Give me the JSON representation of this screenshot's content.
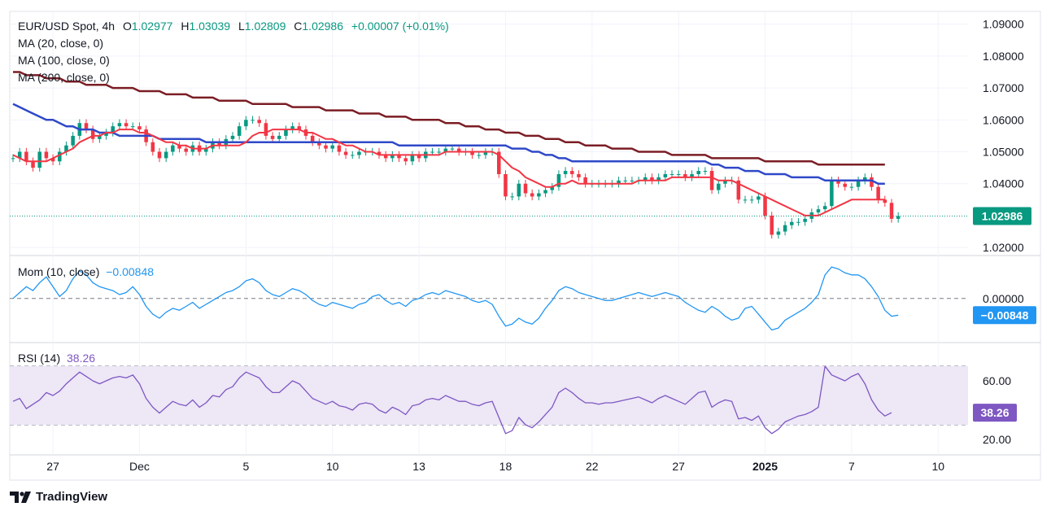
{
  "header": {
    "symbol": "EUR/USD Spot, 4h",
    "open_label": "O",
    "open": "1.02977",
    "high_label": "H",
    "high": "1.03039",
    "low_label": "L",
    "low": "1.02809",
    "close_label": "C",
    "close": "1.02986",
    "change": "+0.00007 (+0.01%)"
  },
  "indicators": {
    "ma20": "MA (20, close, 0)",
    "ma100": "MA (100, close, 0)",
    "ma200": "MA (200, close, 0)",
    "mom_label": "Mom (10, close)",
    "mom_value": "−0.00848",
    "rsi_label": "RSI (14)",
    "rsi_value": "38.26"
  },
  "brand": "TradingView",
  "colors": {
    "up": "#089981",
    "down": "#f23645",
    "ma20": "#f23645",
    "ma100": "#2f49c8",
    "ma200": "#7b1d24",
    "mom": "#2196f3",
    "rsi": "#7e57c2",
    "rsi_band": "#ede7f6"
  },
  "chart_data": [
    {
      "type": "line",
      "title": "EUR/USD Spot, 4h",
      "ylim": [
        1.018,
        1.094
      ],
      "y_ticks": [
        "1.09000",
        "1.08000",
        "1.07000",
        "1.06000",
        "1.05000",
        "1.04000",
        "1.02000"
      ],
      "y_tick_values": [
        1.09,
        1.08,
        1.07,
        1.06,
        1.05,
        1.04,
        1.02
      ],
      "last_price_label": "1.02986",
      "last_price": 1.02986,
      "x_ticks": [
        "27",
        "Dec",
        "5",
        "10",
        "13",
        "18",
        "22",
        "27",
        "2025",
        "7",
        "10"
      ],
      "x_tick_index": [
        6,
        19,
        35,
        48,
        61,
        74,
        87,
        100,
        113,
        126,
        139
      ],
      "series": [
        {
          "name": "Price",
          "values": [
            1.048,
            1.05,
            1.047,
            1.045,
            1.05,
            1.048,
            1.047,
            1.05,
            1.052,
            1.055,
            1.059,
            1.057,
            1.054,
            1.055,
            1.056,
            1.058,
            1.059,
            1.058,
            1.058,
            1.057,
            1.053,
            1.05,
            1.048,
            1.05,
            1.052,
            1.051,
            1.05,
            1.052,
            1.05,
            1.051,
            1.053,
            1.052,
            1.054,
            1.055,
            1.058,
            1.06,
            1.06,
            1.059,
            1.055,
            1.054,
            1.055,
            1.057,
            1.058,
            1.057,
            1.055,
            1.053,
            1.052,
            1.051,
            1.052,
            1.05,
            1.049,
            1.049,
            1.05,
            1.05,
            1.05,
            1.049,
            1.048,
            1.049,
            1.048,
            1.047,
            1.049,
            1.048,
            1.05,
            1.05,
            1.05,
            1.051,
            1.051,
            1.05,
            1.05,
            1.049,
            1.049,
            1.05,
            1.05,
            1.043,
            1.036,
            1.036,
            1.04,
            1.037,
            1.036,
            1.037,
            1.038,
            1.039,
            1.043,
            1.044,
            1.043,
            1.042,
            1.04,
            1.04,
            1.04,
            1.04,
            1.04,
            1.041,
            1.041,
            1.041,
            1.041,
            1.042,
            1.041,
            1.042,
            1.043,
            1.043,
            1.043,
            1.042,
            1.043,
            1.044,
            1.044,
            1.038,
            1.04,
            1.041,
            1.041,
            1.035,
            1.035,
            1.035,
            1.036,
            1.03,
            1.024,
            1.025,
            1.027,
            1.028,
            1.028,
            1.029,
            1.031,
            1.032,
            1.033,
            1.041,
            1.04,
            1.039,
            1.039,
            1.041,
            1.042,
            1.039,
            1.035,
            1.034,
            1.029,
            1.02986
          ]
        },
        {
          "name": "MA (20, close, 0)",
          "values": [
            1.049,
            1.048,
            1.047,
            1.047,
            1.047,
            1.047,
            1.048,
            1.049,
            1.05,
            1.051,
            1.053,
            1.054,
            1.055,
            1.055,
            1.056,
            1.056,
            1.057,
            1.057,
            1.057,
            1.056,
            1.056,
            1.055,
            1.054,
            1.053,
            1.053,
            1.052,
            1.052,
            1.051,
            1.051,
            1.051,
            1.052,
            1.052,
            1.052,
            1.052,
            1.052,
            1.053,
            1.055,
            1.056,
            1.056,
            1.057,
            1.057,
            1.057,
            1.057,
            1.057,
            1.056,
            1.056,
            1.055,
            1.054,
            1.054,
            1.053,
            1.052,
            1.052,
            1.051,
            1.05,
            1.05,
            1.049,
            1.049,
            1.049,
            1.049,
            1.049,
            1.049,
            1.049,
            1.049,
            1.049,
            1.049,
            1.05,
            1.05,
            1.05,
            1.05,
            1.05,
            1.05,
            1.05,
            1.05,
            1.049,
            1.047,
            1.045,
            1.044,
            1.042,
            1.041,
            1.04,
            1.039,
            1.039,
            1.04,
            1.04,
            1.041,
            1.04,
            1.04,
            1.04,
            1.04,
            1.04,
            1.04,
            1.04,
            1.04,
            1.04,
            1.041,
            1.041,
            1.041,
            1.041,
            1.041,
            1.042,
            1.042,
            1.042,
            1.042,
            1.042,
            1.042,
            1.042,
            1.041,
            1.041,
            1.041,
            1.04,
            1.039,
            1.038,
            1.037,
            1.036,
            1.035,
            1.034,
            1.033,
            1.032,
            1.031,
            1.03,
            1.03,
            1.03,
            1.031,
            1.032,
            1.033,
            1.034,
            1.035,
            1.035,
            1.035,
            1.035,
            1.035,
            1.035
          ]
        },
        {
          "name": "MA (100, close, 0)",
          "values": [
            1.065,
            1.064,
            1.063,
            1.062,
            1.061,
            1.06,
            1.06,
            1.059,
            1.058,
            1.058,
            1.057,
            1.057,
            1.057,
            1.056,
            1.056,
            1.056,
            1.055,
            1.055,
            1.055,
            1.055,
            1.055,
            1.055,
            1.054,
            1.054,
            1.054,
            1.054,
            1.054,
            1.054,
            1.054,
            1.053,
            1.053,
            1.053,
            1.053,
            1.053,
            1.053,
            1.053,
            1.053,
            1.053,
            1.053,
            1.053,
            1.053,
            1.053,
            1.053,
            1.053,
            1.053,
            1.053,
            1.053,
            1.053,
            1.053,
            1.053,
            1.053,
            1.053,
            1.053,
            1.053,
            1.053,
            1.053,
            1.053,
            1.053,
            1.052,
            1.052,
            1.052,
            1.052,
            1.052,
            1.052,
            1.052,
            1.052,
            1.052,
            1.052,
            1.052,
            1.052,
            1.052,
            1.052,
            1.052,
            1.052,
            1.052,
            1.051,
            1.051,
            1.051,
            1.05,
            1.05,
            1.049,
            1.049,
            1.048,
            1.048,
            1.047,
            1.047,
            1.047,
            1.047,
            1.047,
            1.047,
            1.047,
            1.047,
            1.047,
            1.047,
            1.047,
            1.047,
            1.047,
            1.047,
            1.047,
            1.047,
            1.047,
            1.047,
            1.047,
            1.047,
            1.047,
            1.046,
            1.046,
            1.045,
            1.045,
            1.045,
            1.044,
            1.044,
            1.044,
            1.043,
            1.043,
            1.043,
            1.043,
            1.042,
            1.042,
            1.042,
            1.042,
            1.042,
            1.041,
            1.041,
            1.041,
            1.041,
            1.041,
            1.041,
            1.041,
            1.041,
            1.04,
            1.04
          ]
        },
        {
          "name": "MA (200, close, 0)",
          "values": [
            1.075,
            1.075,
            1.074,
            1.074,
            1.074,
            1.073,
            1.073,
            1.073,
            1.072,
            1.072,
            1.072,
            1.071,
            1.071,
            1.071,
            1.071,
            1.07,
            1.07,
            1.07,
            1.07,
            1.069,
            1.069,
            1.069,
            1.069,
            1.068,
            1.068,
            1.068,
            1.068,
            1.067,
            1.067,
            1.067,
            1.067,
            1.066,
            1.066,
            1.066,
            1.066,
            1.066,
            1.065,
            1.065,
            1.065,
            1.065,
            1.065,
            1.065,
            1.064,
            1.064,
            1.064,
            1.064,
            1.064,
            1.063,
            1.063,
            1.063,
            1.063,
            1.063,
            1.062,
            1.062,
            1.062,
            1.062,
            1.061,
            1.061,
            1.061,
            1.061,
            1.06,
            1.06,
            1.06,
            1.06,
            1.06,
            1.059,
            1.059,
            1.059,
            1.058,
            1.058,
            1.058,
            1.057,
            1.057,
            1.057,
            1.056,
            1.056,
            1.056,
            1.055,
            1.055,
            1.055,
            1.054,
            1.054,
            1.054,
            1.053,
            1.053,
            1.053,
            1.052,
            1.052,
            1.052,
            1.052,
            1.051,
            1.051,
            1.051,
            1.051,
            1.05,
            1.05,
            1.05,
            1.05,
            1.05,
            1.049,
            1.049,
            1.049,
            1.049,
            1.049,
            1.049,
            1.048,
            1.048,
            1.048,
            1.048,
            1.048,
            1.048,
            1.048,
            1.048,
            1.047,
            1.047,
            1.047,
            1.047,
            1.047,
            1.047,
            1.047,
            1.047,
            1.046,
            1.046,
            1.046,
            1.046,
            1.046,
            1.046,
            1.046,
            1.046,
            1.046,
            1.046,
            1.046
          ]
        }
      ]
    },
    {
      "type": "line",
      "title": "Mom (10, close)",
      "ylim": [
        -0.022,
        0.021
      ],
      "y_ticks": [
        "0.00000"
      ],
      "y_tick_values": [
        0
      ],
      "last_value_label": "−0.00848",
      "x_ticks": [
        "27",
        "Dec",
        "5",
        "10",
        "13",
        "18",
        "22",
        "27",
        "2025",
        "7",
        "10"
      ],
      "series": [
        {
          "name": "Mom (10, close)",
          "values": [
            0,
            0.003,
            0.006,
            0.004,
            0.008,
            0.011,
            0.006,
            0.001,
            0.004,
            0.01,
            0.014,
            0.012,
            0.008,
            0.006,
            0.005,
            0.004,
            0.002,
            0.003,
            0.006,
            0.002,
            -0.004,
            -0.008,
            -0.01,
            -0.007,
            -0.005,
            -0.006,
            -0.004,
            -0.002,
            -0.005,
            -0.003,
            -0.001,
            0.001,
            0.003,
            0.004,
            0.006,
            0.009,
            0.01,
            0.008,
            0.004,
            0.002,
            0.001,
            0.003,
            0.005,
            0.004,
            0.002,
            -0.001,
            -0.003,
            -0.004,
            -0.002,
            -0.003,
            -0.004,
            -0.005,
            -0.003,
            -0.002,
            0.001,
            0.002,
            -0.001,
            -0.003,
            -0.002,
            -0.004,
            -0.001,
            0,
            0.002,
            0.003,
            0.002,
            0.004,
            0.003,
            0.002,
            0.001,
            -0.001,
            -0.002,
            -0.001,
            -0.003,
            -0.009,
            -0.014,
            -0.013,
            -0.01,
            -0.012,
            -0.013,
            -0.01,
            -0.005,
            -0.001,
            0.004,
            0.006,
            0.005,
            0.003,
            0.002,
            0.001,
            0,
            -0.001,
            -0.001,
            0,
            0.001,
            0.002,
            0.003,
            0.002,
            0.001,
            0.002,
            0.003,
            0.002,
            0.001,
            -0.002,
            -0.004,
            -0.006,
            -0.007,
            -0.004,
            -0.006,
            -0.009,
            -0.011,
            -0.01,
            -0.005,
            -0.004,
            -0.008,
            -0.012,
            -0.016,
            -0.015,
            -0.011,
            -0.009,
            -0.007,
            -0.005,
            -0.002,
            0.002,
            0.012,
            0.016,
            0.015,
            0.013,
            0.012,
            0.012,
            0.01,
            0.006,
            0.001,
            -0.006,
            -0.009,
            -0.00848
          ]
        }
      ]
    },
    {
      "type": "line",
      "title": "RSI (14)",
      "ylim": [
        10,
        85
      ],
      "y_ticks": [
        "60.00",
        "20.00"
      ],
      "y_tick_values": [
        60,
        20
      ],
      "band": [
        30,
        70
      ],
      "last_value_label": "38.26",
      "x_ticks": [
        "27",
        "Dec",
        "5",
        "10",
        "13",
        "18",
        "22",
        "27",
        "2025",
        "7",
        "10"
      ],
      "series": [
        {
          "name": "RSI (14)",
          "values": [
            46,
            48,
            41,
            44,
            47,
            52,
            50,
            53,
            58,
            62,
            66,
            63,
            60,
            58,
            60,
            62,
            63,
            62,
            64,
            58,
            48,
            42,
            38,
            42,
            46,
            44,
            43,
            47,
            42,
            45,
            50,
            49,
            54,
            56,
            62,
            66,
            64,
            62,
            56,
            52,
            52,
            56,
            60,
            58,
            53,
            48,
            46,
            44,
            46,
            43,
            42,
            40,
            44,
            45,
            44,
            40,
            38,
            42,
            40,
            37,
            43,
            44,
            47,
            48,
            47,
            50,
            48,
            46,
            46,
            44,
            43,
            45,
            46,
            35,
            24,
            26,
            35,
            30,
            28,
            32,
            37,
            42,
            52,
            55,
            52,
            48,
            45,
            45,
            44,
            45,
            45,
            46,
            47,
            48,
            49,
            47,
            45,
            48,
            50,
            48,
            46,
            44,
            48,
            52,
            53,
            42,
            45,
            47,
            46,
            34,
            35,
            33,
            36,
            28,
            24,
            27,
            32,
            34,
            36,
            37,
            39,
            42,
            70,
            64,
            62,
            60,
            63,
            65,
            58,
            47,
            40,
            36,
            38.26
          ]
        }
      ]
    }
  ]
}
